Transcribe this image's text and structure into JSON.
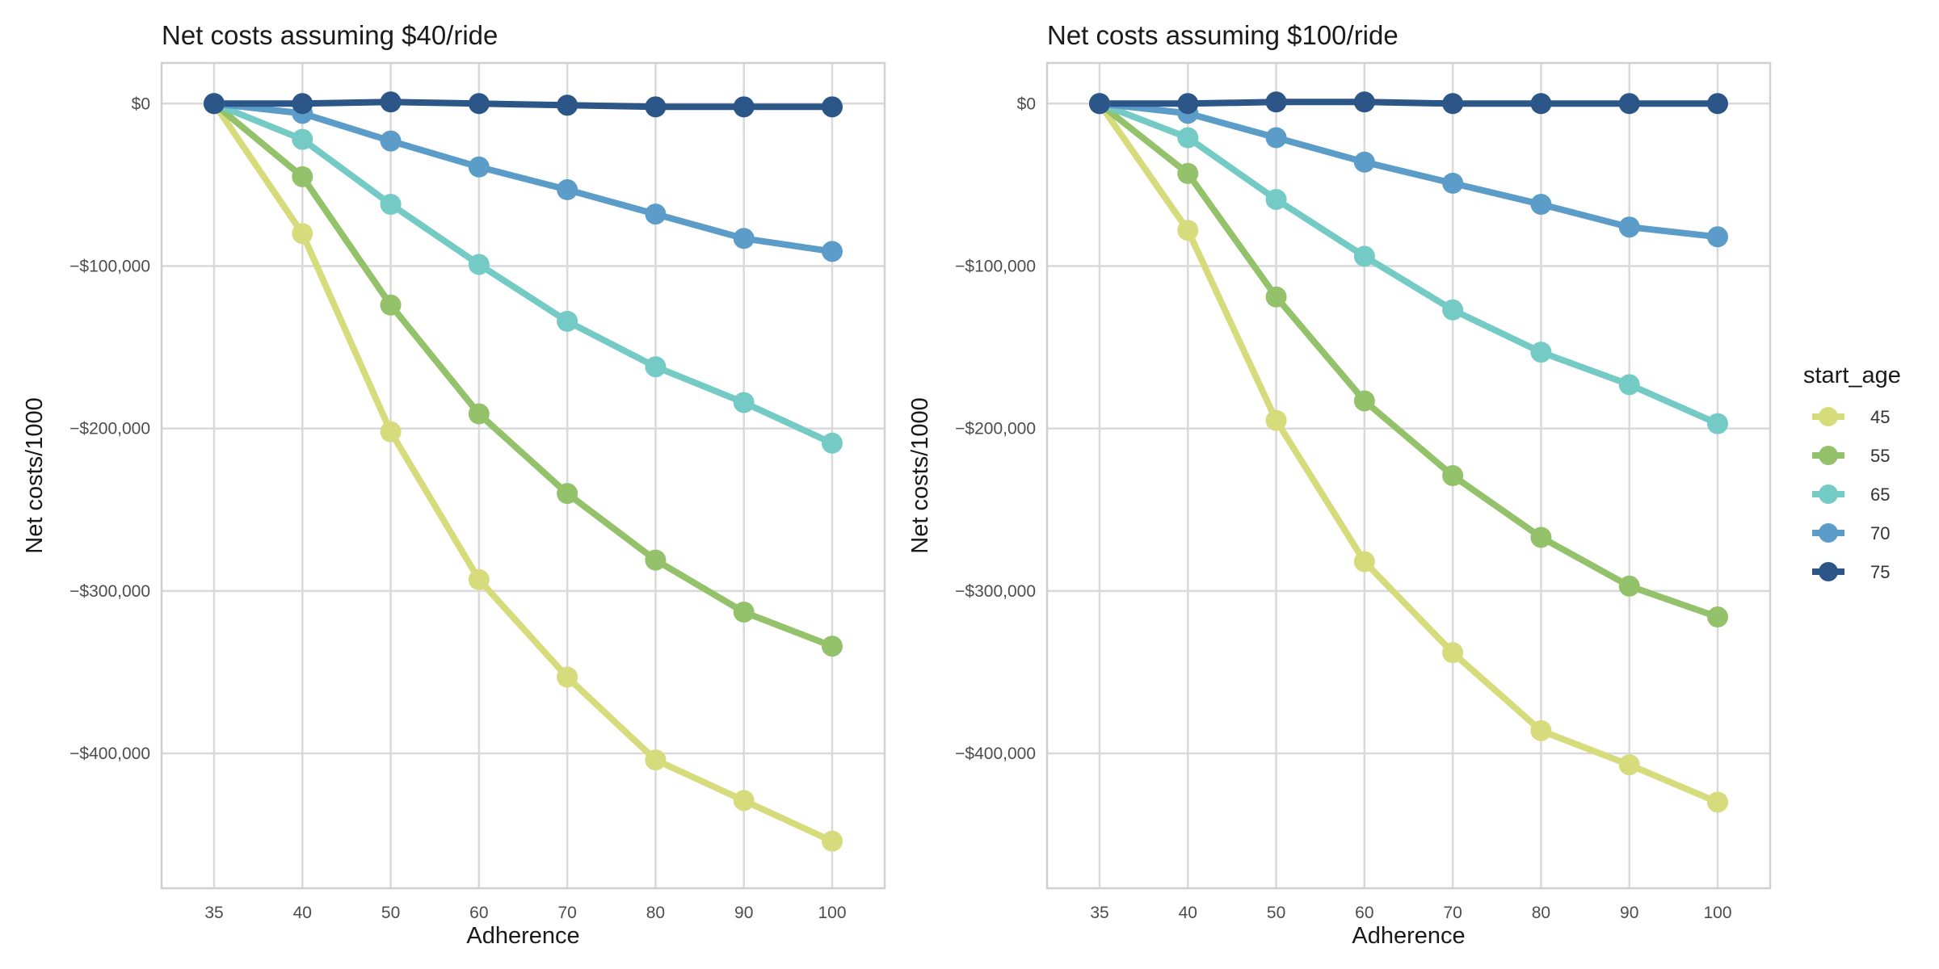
{
  "chart_data": [
    {
      "type": "line",
      "title": "Net costs assuming $40/ride",
      "xlabel": "Adherence",
      "ylabel": "Net costs/1000",
      "categories": [
        "35",
        "40",
        "50",
        "60",
        "70",
        "80",
        "90",
        "100"
      ],
      "ylim": [
        -483000,
        25000
      ],
      "yticks": [
        0,
        -100000,
        -200000,
        -300000,
        -400000
      ],
      "ytick_labels": [
        "$0",
        "−$100,000",
        "−$200,000",
        "−$300,000",
        "−$400,000"
      ],
      "grid": true,
      "series": [
        {
          "name": "45",
          "color": "#d6dc7c",
          "values": [
            0,
            -80000,
            -202000,
            -293000,
            -353000,
            -404000,
            -429000,
            -454000
          ]
        },
        {
          "name": "55",
          "color": "#93c26b",
          "values": [
            0,
            -45000,
            -124000,
            -191000,
            -240000,
            -281000,
            -313000,
            -334000
          ]
        },
        {
          "name": "65",
          "color": "#74cbc6",
          "values": [
            0,
            -22000,
            -62000,
            -99000,
            -134000,
            -162000,
            -184000,
            -209000
          ]
        },
        {
          "name": "70",
          "color": "#5b9cc9",
          "values": [
            0,
            -6000,
            -23000,
            -39000,
            -53000,
            -68000,
            -83000,
            -91000
          ]
        },
        {
          "name": "75",
          "color": "#2c5687",
          "values": [
            0,
            0,
            1000,
            0,
            -1000,
            -2000,
            -2000,
            -2000
          ]
        }
      ]
    },
    {
      "type": "line",
      "title": "Net costs assuming $100/ride",
      "xlabel": "Adherence",
      "ylabel": "Net costs/1000",
      "categories": [
        "35",
        "40",
        "50",
        "60",
        "70",
        "80",
        "90",
        "100"
      ],
      "ylim": [
        -483000,
        25000
      ],
      "yticks": [
        0,
        -100000,
        -200000,
        -300000,
        -400000
      ],
      "ytick_labels": [
        "$0",
        "−$100,000",
        "−$200,000",
        "−$300,000",
        "−$400,000"
      ],
      "grid": true,
      "series": [
        {
          "name": "45",
          "color": "#d6dc7c",
          "values": [
            0,
            -78000,
            -195000,
            -282000,
            -338000,
            -386000,
            -407000,
            -430000
          ]
        },
        {
          "name": "55",
          "color": "#93c26b",
          "values": [
            0,
            -43000,
            -119000,
            -183000,
            -229000,
            -267000,
            -297000,
            -316000
          ]
        },
        {
          "name": "65",
          "color": "#74cbc6",
          "values": [
            0,
            -21000,
            -59000,
            -94000,
            -127000,
            -153000,
            -173000,
            -197000
          ]
        },
        {
          "name": "70",
          "color": "#5b9cc9",
          "values": [
            0,
            -6000,
            -21000,
            -36000,
            -49000,
            -62000,
            -76000,
            -82000
          ]
        },
        {
          "name": "75",
          "color": "#2c5687",
          "values": [
            0,
            0,
            1000,
            1000,
            0,
            0,
            0,
            0
          ]
        }
      ]
    }
  ],
  "legend": {
    "title": "start_age",
    "entries": [
      {
        "label": "45",
        "color": "#d6dc7c"
      },
      {
        "label": "55",
        "color": "#93c26b"
      },
      {
        "label": "65",
        "color": "#74cbc6"
      },
      {
        "label": "70",
        "color": "#5b9cc9"
      },
      {
        "label": "75",
        "color": "#2c5687"
      }
    ]
  }
}
